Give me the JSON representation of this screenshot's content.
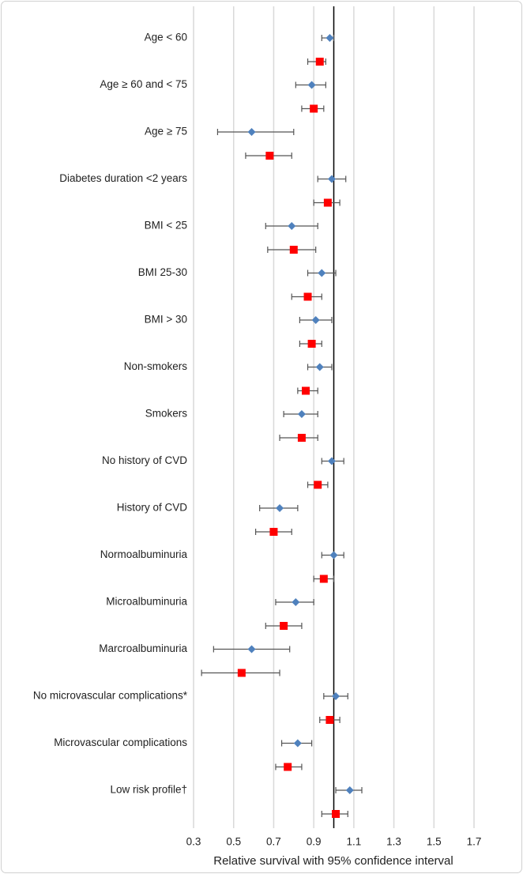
{
  "chart_data": {
    "type": "forest",
    "x_label": "Relative survival with 95% confidence interval",
    "categories": [
      "Age < 60",
      "Age ≥ 60 and < 75",
      "Age ≥ 75",
      "Diabetes duration <2 years",
      "BMI < 25",
      "BMI 25-30",
      "BMI > 30",
      "Non-smokers",
      "Smokers",
      "No history of CVD",
      "History of CVD",
      "Normoalbuminuria",
      "Microalbuminuria",
      "Marcroalbuminuria",
      "No microvascular complications*",
      "Microvascular complications",
      "Low risk profile†"
    ],
    "series": [
      {
        "color": "#4f81bd",
        "marker": "diamond",
        "values": [
          0.98,
          0.89,
          0.59,
          0.99,
          0.79,
          0.94,
          0.91,
          0.93,
          0.84,
          0.99,
          0.73,
          1.0,
          0.81,
          0.59,
          1.01,
          0.82,
          1.08
        ],
        "lower": [
          0.94,
          0.81,
          0.42,
          0.92,
          0.66,
          0.87,
          0.83,
          0.87,
          0.75,
          0.94,
          0.63,
          0.94,
          0.71,
          0.4,
          0.95,
          0.74,
          1.01
        ],
        "upper": [
          1.0,
          0.96,
          0.8,
          1.06,
          0.92,
          1.01,
          0.99,
          0.99,
          0.92,
          1.05,
          0.82,
          1.05,
          0.9,
          0.78,
          1.07,
          0.89,
          1.14
        ]
      },
      {
        "color": "#ff0000",
        "marker": "square",
        "values": [
          0.93,
          0.9,
          0.68,
          0.97,
          0.8,
          0.87,
          0.89,
          0.86,
          0.84,
          0.92,
          0.7,
          0.95,
          0.75,
          0.54,
          0.98,
          0.77,
          1.01
        ],
        "lower": [
          0.87,
          0.84,
          0.56,
          0.9,
          0.67,
          0.79,
          0.83,
          0.82,
          0.73,
          0.87,
          0.61,
          0.9,
          0.66,
          0.34,
          0.93,
          0.71,
          0.94
        ],
        "upper": [
          0.96,
          0.95,
          0.79,
          1.03,
          0.91,
          0.94,
          0.94,
          0.92,
          0.92,
          0.97,
          0.79,
          1.0,
          0.84,
          0.73,
          1.03,
          0.84,
          1.07
        ]
      }
    ],
    "reference_line": 1,
    "xlim": [
      0.3,
      1.7
    ],
    "xticks": [
      0.3,
      0.5,
      0.7,
      0.9,
      1.1,
      1.3,
      1.5,
      1.7
    ],
    "grid": true
  }
}
